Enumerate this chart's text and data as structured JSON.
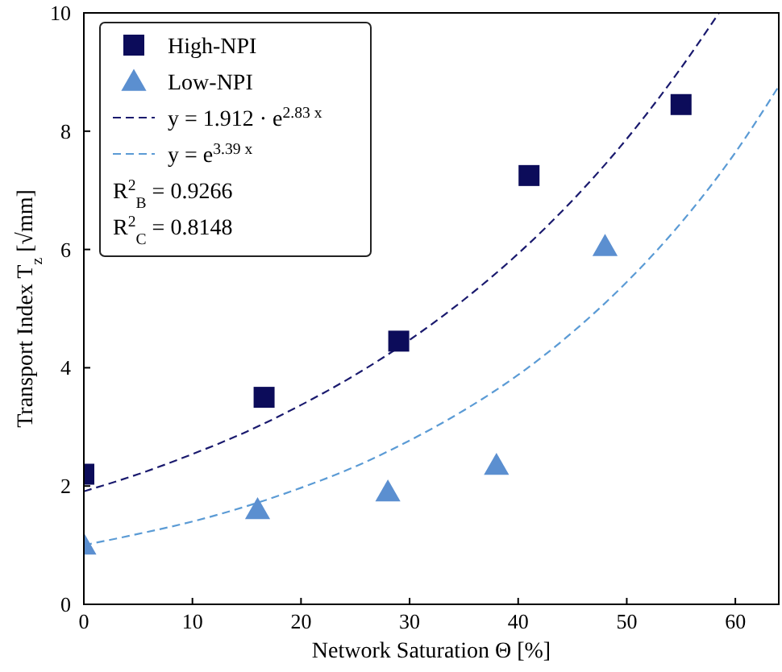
{
  "chart_data": {
    "type": "scatter",
    "xlabel": "Network Saturation Θ [%]",
    "ylabel": "Transport Index  T$_{z}$ [√mm]",
    "xlim": [
      0,
      64
    ],
    "ylim": [
      0,
      10
    ],
    "xticks": [
      0,
      10,
      20,
      30,
      40,
      50,
      60
    ],
    "yticks": [
      0,
      2,
      4,
      6,
      8,
      10
    ],
    "grid": false,
    "legend": "top left",
    "series": [
      {
        "name": "High-NPI",
        "marker": "square",
        "color": "#0c0c5a",
        "x": [
          0,
          16.6,
          29,
          41,
          55
        ],
        "values": [
          2.2,
          3.5,
          4.45,
          7.25,
          8.45
        ]
      },
      {
        "name": "Low-NPI",
        "marker": "triangle",
        "color": "#5b8fd0",
        "x": [
          0,
          16,
          28,
          38,
          48
        ],
        "values": [
          1.0,
          1.6,
          1.9,
          2.35,
          6.05
        ]
      },
      {
        "name": "y = 1.912 · e$^{2.83 x}$",
        "type": "line",
        "line_style": "dashed",
        "color": "#1a1a6e",
        "x": [
          0,
          5,
          10,
          15,
          20,
          25,
          30,
          35,
          40,
          45,
          50,
          55,
          58.5
        ],
        "values": [
          1.91,
          2.2,
          2.54,
          2.92,
          3.37,
          3.88,
          4.47,
          5.15,
          5.93,
          6.83,
          7.87,
          9.07,
          10.0
        ]
      },
      {
        "name": "y = e$^{3.39 x}$",
        "type": "line",
        "line_style": "dashed",
        "color": "#5b9bd5",
        "x": [
          0,
          5,
          10,
          15,
          20,
          25,
          30,
          35,
          40,
          45,
          50,
          55,
          60,
          64
        ],
        "values": [
          1,
          1.19,
          1.4,
          1.66,
          1.97,
          2.33,
          2.77,
          3.28,
          3.88,
          4.6,
          5.45,
          6.45,
          7.64,
          8.76
        ]
      }
    ],
    "annotations": [
      "R$^{2}$$_{B}$ = 0.9266",
      "R$^{2}$$_{C}$ = 0.8148"
    ]
  }
}
